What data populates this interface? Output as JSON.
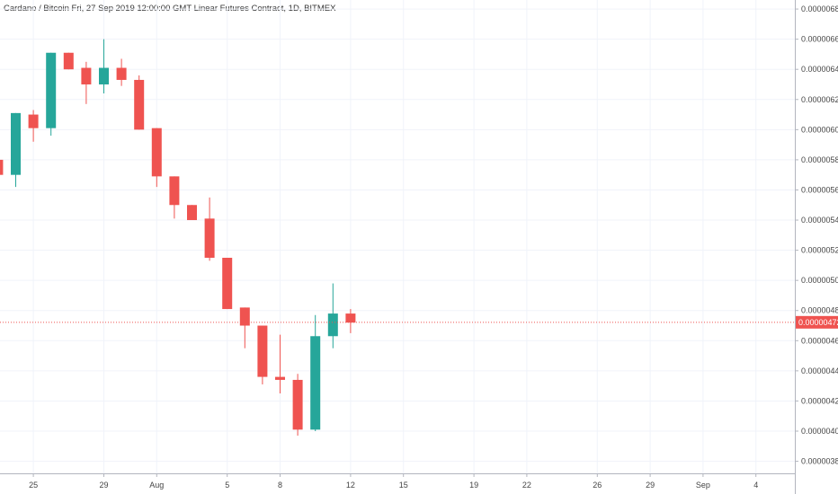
{
  "header": {
    "title": "Cardano / Bitcoin Fri, 27 Sep 2019 12:00:00 GMT Linear Futures Contract, 1D, BITMEX"
  },
  "colors": {
    "up": "#26a69a",
    "down": "#ef5350",
    "grid": "#f0f3fa",
    "axis": "#b2b5be",
    "current": "#ef5350"
  },
  "chart_data": {
    "type": "candlestick",
    "title": "Cardano / Bitcoin Fri, 27 Sep 2019 12:00:00 GMT Linear Futures Contract, 1D, BITMEX",
    "ylim": [
      3.72e-06,
      6.86e-06
    ],
    "y_ticks": [
      "0.00000380",
      "0.00000400",
      "0.00000420",
      "0.00000440",
      "0.00000460",
      "0.00000480",
      "0.00000500",
      "0.00000520",
      "0.00000540",
      "0.00000560",
      "0.00000580",
      "0.00000600",
      "0.00000620",
      "0.00000640",
      "0.00000660",
      "0.00000680"
    ],
    "x_ticks": [
      {
        "label": "25",
        "index": 1
      },
      {
        "label": "29",
        "index": 5
      },
      {
        "label": "Aug",
        "index": 8
      },
      {
        "label": "5",
        "index": 12
      },
      {
        "label": "8",
        "index": 15
      },
      {
        "label": "12",
        "index": 19
      },
      {
        "label": "15",
        "index": 22
      },
      {
        "label": "19",
        "index": 26
      },
      {
        "label": "22",
        "index": 29
      },
      {
        "label": "26",
        "index": 33
      },
      {
        "label": "29",
        "index": 36
      },
      {
        "label": "Sep",
        "index": 39
      },
      {
        "label": "4",
        "index": 42
      }
    ],
    "current_price": "0.00000472",
    "current_value": 4.722e-06,
    "candles": [
      {
        "index": -1,
        "open": 5.8e-06,
        "high": 5.81e-06,
        "low": 5.7e-06,
        "close": 5.7e-06
      },
      {
        "index": 0,
        "open": 5.7e-06,
        "high": 6.11e-06,
        "low": 5.62e-06,
        "close": 6.11e-06
      },
      {
        "index": 1,
        "open": 6.1e-06,
        "high": 6.13e-06,
        "low": 5.92e-06,
        "close": 6.01e-06
      },
      {
        "index": 2,
        "open": 6.01e-06,
        "high": 6.51e-06,
        "low": 5.96e-06,
        "close": 6.51e-06
      },
      {
        "index": 3,
        "open": 6.51e-06,
        "high": 6.51e-06,
        "low": 6.4e-06,
        "close": 6.4e-06
      },
      {
        "index": 4,
        "open": 6.41e-06,
        "high": 6.45e-06,
        "low": 6.17e-06,
        "close": 6.3e-06
      },
      {
        "index": 5,
        "open": 6.3e-06,
        "high": 6.6e-06,
        "low": 6.24e-06,
        "close": 6.41e-06
      },
      {
        "index": 6,
        "open": 6.41e-06,
        "high": 6.47e-06,
        "low": 6.29e-06,
        "close": 6.33e-06
      },
      {
        "index": 7,
        "open": 6.33e-06,
        "high": 6.36e-06,
        "low": 6e-06,
        "close": 6e-06
      },
      {
        "index": 8,
        "open": 6.01e-06,
        "high": 6.01e-06,
        "low": 5.62e-06,
        "close": 5.69e-06
      },
      {
        "index": 9,
        "open": 5.69e-06,
        "high": 5.69e-06,
        "low": 5.41e-06,
        "close": 5.5e-06
      },
      {
        "index": 10,
        "open": 5.5e-06,
        "high": 5.5e-06,
        "low": 5.4e-06,
        "close": 5.4e-06
      },
      {
        "index": 11,
        "open": 5.41e-06,
        "high": 5.55e-06,
        "low": 5.13e-06,
        "close": 5.15e-06
      },
      {
        "index": 12,
        "open": 5.15e-06,
        "high": 5.15e-06,
        "low": 4.81e-06,
        "close": 4.81e-06
      },
      {
        "index": 13,
        "open": 4.82e-06,
        "high": 4.82e-06,
        "low": 4.55e-06,
        "close": 4.7e-06
      },
      {
        "index": 14,
        "open": 4.7e-06,
        "high": 4.7e-06,
        "low": 4.31e-06,
        "close": 4.36e-06
      },
      {
        "index": 15,
        "open": 4.36e-06,
        "high": 4.64e-06,
        "low": 4.25e-06,
        "close": 4.34e-06
      },
      {
        "index": 16,
        "open": 4.34e-06,
        "high": 4.38e-06,
        "low": 3.97e-06,
        "close": 4.01e-06
      },
      {
        "index": 17,
        "open": 4.01e-06,
        "high": 4.77e-06,
        "low": 4e-06,
        "close": 4.63e-06
      },
      {
        "index": 18,
        "open": 4.63e-06,
        "high": 4.98e-06,
        "low": 4.55e-06,
        "close": 4.78e-06
      },
      {
        "index": 19,
        "open": 4.78e-06,
        "high": 4.81e-06,
        "low": 4.65e-06,
        "close": 4.72e-06
      }
    ]
  }
}
